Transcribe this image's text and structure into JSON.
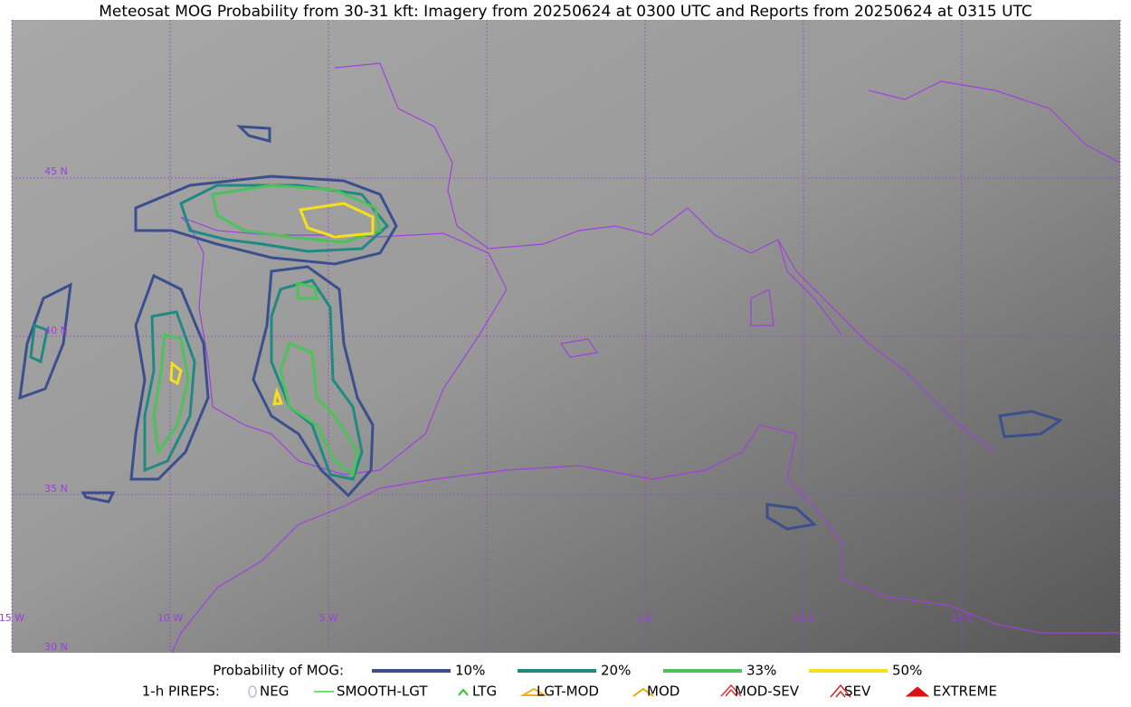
{
  "title": "Meteosat MOG Probability from 30-31 kft: Imagery from 20250624 at 0300 UTC and Reports from 20250624 at 0315 UTC",
  "map": {
    "lat_labels": [
      "45 N",
      "40 N",
      "35 N",
      "30 N"
    ],
    "lon_labels": [
      "15 W",
      "10 W",
      "5 W",
      "5 E",
      "10 E",
      "15 E"
    ]
  },
  "legend": {
    "probability": {
      "label": "Probability of MOG:",
      "items": [
        {
          "label": "10%",
          "color": "#3b4f8f"
        },
        {
          "label": "20%",
          "color": "#1f8a82"
        },
        {
          "label": "33%",
          "color": "#4cc25a"
        },
        {
          "label": "50%",
          "color": "#f5e11a"
        }
      ]
    },
    "pireps": {
      "label": "1-h PIREPS:",
      "items": [
        {
          "label": "NEG",
          "color": "#b8b8f0"
        },
        {
          "label": "SMOOTH-LGT",
          "color": "#33dd33"
        },
        {
          "label": "LTG",
          "color": "#22cc22"
        },
        {
          "label": "LGT-MOD",
          "color": "#f0b020"
        },
        {
          "label": "MOD",
          "color": "#f0a800"
        },
        {
          "label": "MOD-SEV",
          "color": "#e83030"
        },
        {
          "label": "SEV",
          "color": "#e02020"
        },
        {
          "label": "EXTREME",
          "color": "#dd1111"
        }
      ]
    }
  }
}
